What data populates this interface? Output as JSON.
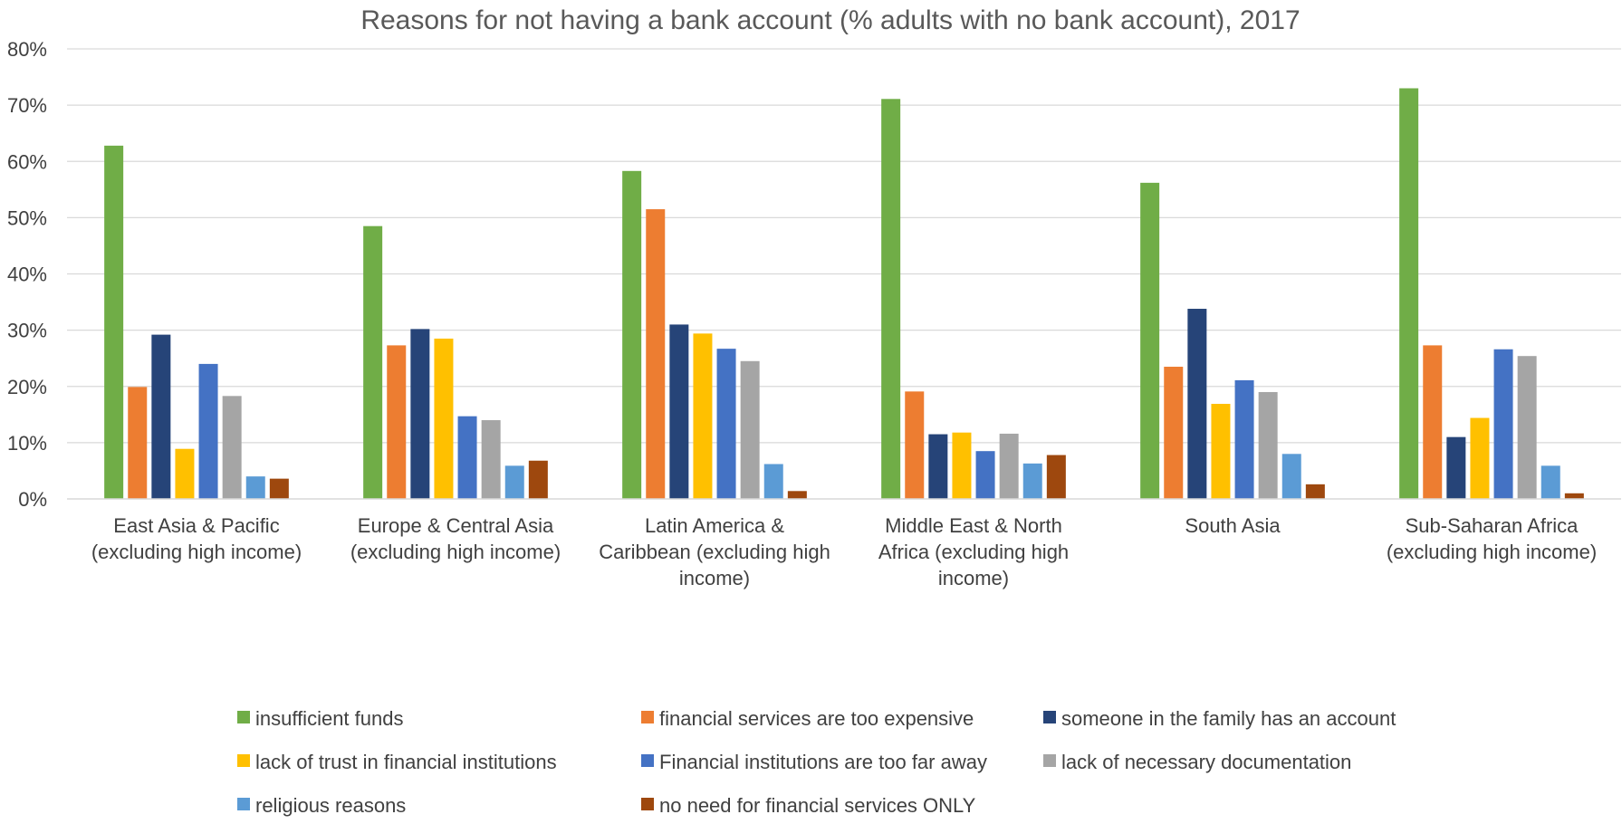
{
  "chart_data": {
    "type": "bar",
    "title": "Reasons for not having a bank account (% adults with no bank account), 2017",
    "xlabel": "",
    "ylabel": "",
    "ylim": [
      0,
      80
    ],
    "yticks": [
      "0%",
      "10%",
      "20%",
      "30%",
      "40%",
      "50%",
      "60%",
      "70%",
      "80%"
    ],
    "grid": true,
    "legend_position": "bottom",
    "categories": [
      [
        "East Asia & Pacific",
        "(excluding high income)"
      ],
      [
        "Europe & Central Asia",
        "(excluding high income)"
      ],
      [
        "Latin America &",
        "Caribbean (excluding high",
        "income)"
      ],
      [
        "Middle East & North",
        "Africa (excluding high",
        "income)"
      ],
      [
        "South Asia"
      ],
      [
        "Sub-Saharan Africa",
        "(excluding high income)"
      ]
    ],
    "series": [
      {
        "name": "insufficient funds",
        "color": "#70AD47",
        "values": [
          62.8,
          48.5,
          58.3,
          71.1,
          56.2,
          73.0
        ]
      },
      {
        "name": "financial services are too expensive",
        "color": "#ED7D31",
        "values": [
          19.9,
          27.3,
          51.5,
          19.1,
          23.5,
          27.3
        ]
      },
      {
        "name": "someone in the family has an account",
        "color": "#264478",
        "values": [
          29.2,
          30.2,
          31.0,
          11.5,
          33.8,
          11.0
        ]
      },
      {
        "name": "lack of trust in financial institutions",
        "color": "#FFC000",
        "values": [
          8.9,
          28.5,
          29.4,
          11.8,
          16.9,
          14.4
        ]
      },
      {
        "name": "Financial institutions are too far away",
        "color": "#4472C4",
        "values": [
          24.0,
          14.7,
          26.7,
          8.5,
          21.1,
          26.6
        ]
      },
      {
        "name": "lack of necessary documentation",
        "color": "#A5A5A5",
        "values": [
          18.3,
          14.0,
          24.5,
          11.6,
          19.0,
          25.4
        ]
      },
      {
        "name": "religious reasons",
        "color": "#5B9BD5",
        "values": [
          4.0,
          5.9,
          6.2,
          6.3,
          8.0,
          5.9
        ]
      },
      {
        "name": "no need for financial services ONLY",
        "color": "#9E480E",
        "values": [
          3.6,
          6.8,
          1.4,
          7.8,
          2.6,
          1.0
        ]
      }
    ]
  }
}
